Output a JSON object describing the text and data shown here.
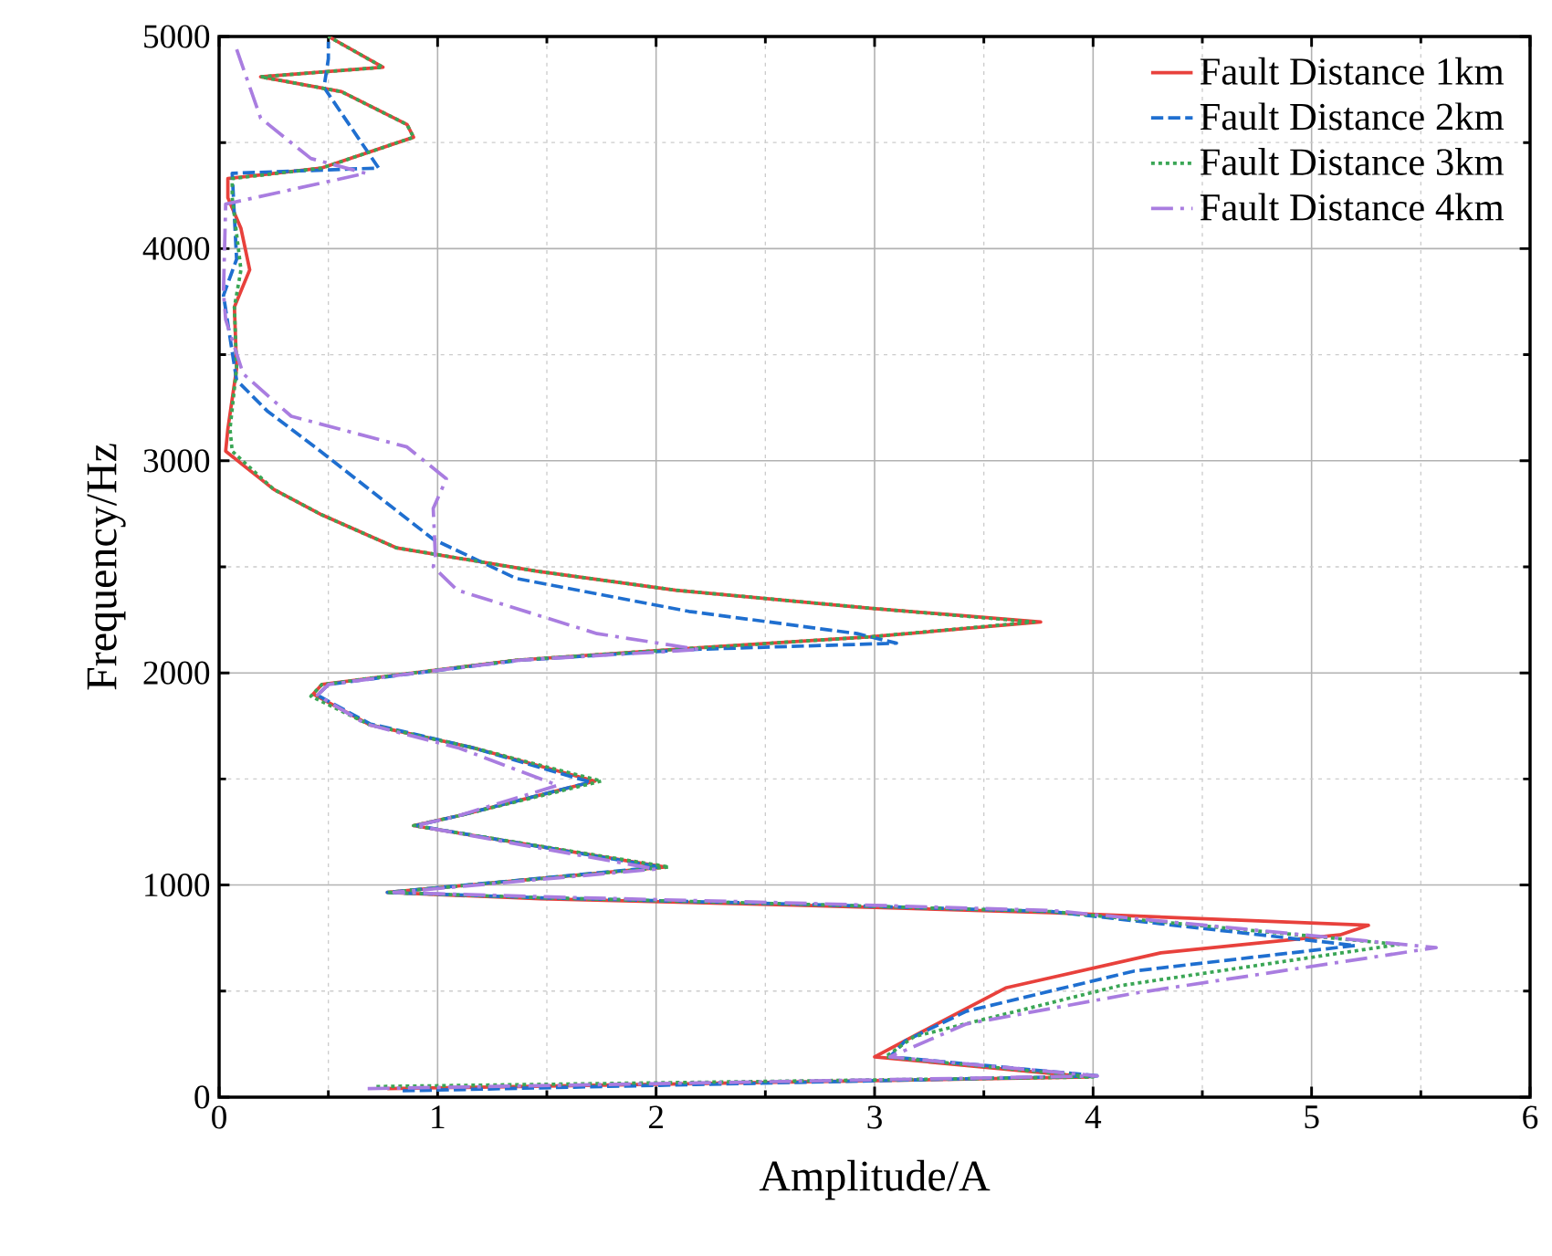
{
  "chart_data": {
    "type": "line",
    "xlabel": "Amplitude/A",
    "ylabel": "Frequency/Hz",
    "xlim": [
      0,
      6
    ],
    "ylim": [
      0,
      5000
    ],
    "xticks": [
      0,
      1,
      2,
      3,
      4,
      5,
      6
    ],
    "yticks": [
      0,
      1000,
      2000,
      3000,
      4000,
      5000
    ],
    "grid": true,
    "legend": "top right",
    "marker": "none",
    "series": [
      {
        "name": "Fault Distance 1km",
        "color": "#e8413c",
        "line_style": "solid",
        "x": [
          0.77,
          3.98,
          3.0,
          3.22,
          3.6,
          4.31,
          5.13,
          5.26,
          3.81,
          2.64,
          1.47,
          0.77,
          2.04,
          0.89,
          1.09,
          1.72,
          1.17,
          0.69,
          0.43,
          0.47,
          0.81,
          1.36,
          2.15,
          2.98,
          3.76,
          2.98,
          2.09,
          1.45,
          0.81,
          0.47,
          0.25,
          0.03,
          0.04,
          0.08,
          0.07,
          0.14,
          0.1,
          0.04,
          0.04,
          0.47,
          0.89,
          0.86,
          0.56,
          0.19,
          0.75,
          0.5
        ],
        "values": [
          40,
          95,
          190,
          310,
          515,
          680,
          765,
          810,
          870,
          905,
          935,
          965,
          1085,
          1280,
          1325,
          1490,
          1645,
          1755,
          1900,
          1945,
          1990,
          2060,
          2115,
          2170,
          2240,
          2305,
          2390,
          2480,
          2590,
          2745,
          2865,
          3045,
          3150,
          3435,
          3725,
          3900,
          4095,
          4240,
          4330,
          4380,
          4525,
          4585,
          4740,
          4810,
          4855,
          5000
        ]
      },
      {
        "name": "Fault Distance 2km",
        "color": "#1f6fd0",
        "line_style": "dashed",
        "x": [
          0.84,
          4.03,
          3.07,
          3.14,
          3.42,
          4.19,
          5.2,
          3.81,
          2.64,
          1.47,
          0.77,
          2.02,
          0.9,
          1.09,
          1.7,
          1.15,
          0.69,
          0.45,
          0.5,
          0.83,
          1.38,
          2.15,
          3.1,
          2.92,
          2.15,
          1.36,
          0.98,
          0.47,
          0.22,
          0.08,
          0.02,
          0.08,
          0.06,
          0.73,
          0.48,
          0.5,
          0.5
        ],
        "values": [
          30,
          100,
          190,
          265,
          405,
          595,
          715,
          875,
          910,
          940,
          965,
          1085,
          1280,
          1325,
          1485,
          1650,
          1760,
          1895,
          1945,
          1990,
          2060,
          2110,
          2140,
          2185,
          2290,
          2445,
          2630,
          3040,
          3235,
          3380,
          3780,
          3950,
          4355,
          4380,
          4760,
          4895,
          4975
        ]
      },
      {
        "name": "Fault Distance 3km",
        "color": "#3aa655",
        "line_style": "dotted",
        "x": [
          0.72,
          4.0,
          3.05,
          3.18,
          4.12,
          5.4,
          3.81,
          2.64,
          1.47,
          0.77,
          2.06,
          0.89,
          1.09,
          1.75,
          1.17,
          0.69,
          0.42,
          0.47,
          0.81,
          1.36,
          2.15,
          2.98,
          3.73,
          2.98,
          2.09,
          1.45,
          0.81,
          0.47,
          0.25,
          0.06,
          0.05,
          0.08,
          0.07,
          0.1,
          0.06,
          0.06,
          0.47,
          0.89,
          0.86,
          0.56,
          0.19,
          0.75,
          0.5
        ],
        "values": [
          50,
          95,
          190,
          285,
          525,
          720,
          875,
          910,
          940,
          965,
          1085,
          1280,
          1325,
          1490,
          1645,
          1755,
          1890,
          1945,
          1990,
          2060,
          2115,
          2170,
          2240,
          2305,
          2390,
          2480,
          2590,
          2745,
          2865,
          3045,
          3150,
          3435,
          3725,
          3900,
          4240,
          4330,
          4380,
          4525,
          4585,
          4740,
          4810,
          4855,
          5000
        ]
      },
      {
        "name": "Fault Distance 4km",
        "color": "#a97de0",
        "line_style": "dashdot",
        "x": [
          0.68,
          4.02,
          3.07,
          3.42,
          4.19,
          5.57,
          3.81,
          2.64,
          1.47,
          0.8,
          2.0,
          0.9,
          1.09,
          1.55,
          1.1,
          0.67,
          0.45,
          0.5,
          0.83,
          1.38,
          2.2,
          1.73,
          1.09,
          0.98,
          0.99,
          0.98,
          1.04,
          0.86,
          0.33,
          0.11,
          0.03,
          0.02,
          0.03,
          0.67,
          0.42,
          0.19,
          0.08
        ],
        "values": [
          40,
          100,
          190,
          345,
          490,
          705,
          880,
          915,
          945,
          965,
          1075,
          1280,
          1325,
          1470,
          1645,
          1760,
          1895,
          1945,
          1990,
          2060,
          2110,
          2185,
          2390,
          2500,
          2545,
          2775,
          2915,
          3065,
          3210,
          3410,
          3665,
          3795,
          4210,
          4355,
          4425,
          4615,
          4940
        ]
      }
    ]
  }
}
